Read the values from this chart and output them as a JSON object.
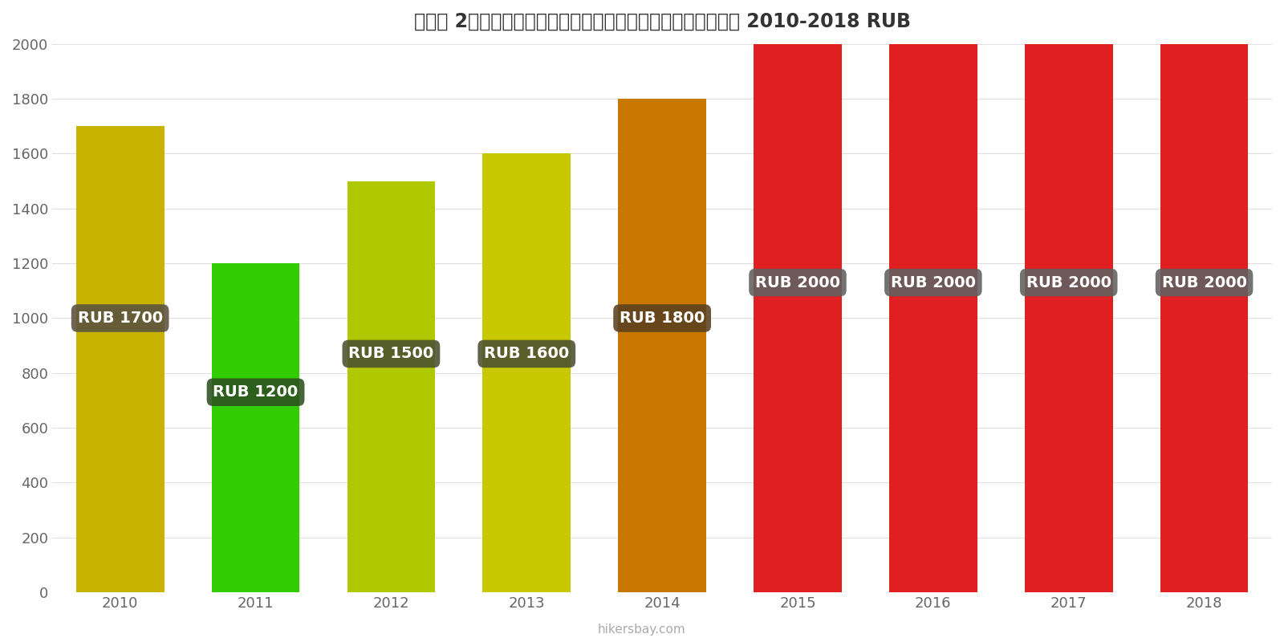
{
  "years": [
    2010,
    2011,
    2012,
    2013,
    2014,
    2015,
    2016,
    2017,
    2018
  ],
  "values": [
    1700,
    1200,
    1500,
    1600,
    1800,
    2000,
    2000,
    2000,
    2000
  ],
  "bar_colors": [
    "#c8b400",
    "#32cd00",
    "#b0c800",
    "#c8c800",
    "#c87800",
    "#e02020",
    "#e02020",
    "#e02020",
    "#e02020"
  ],
  "labels": [
    "RUB 1700",
    "RUB 1200",
    "RUB 1500",
    "RUB 1600",
    "RUB 1800",
    "RUB 2000",
    "RUB 2000",
    "RUB 2000",
    "RUB 2000"
  ],
  "label_bg_colors": [
    "#5a5040",
    "#2d5020",
    "#4a5030",
    "#4a5030",
    "#5a4020",
    "#606060",
    "#606060",
    "#606060",
    "#606060"
  ],
  "title": "ロシア 2名様分のお食事、ミッドレンジレストラン、３コース 2010-2018 RUB",
  "ylim": [
    0,
    2000
  ],
  "yticks": [
    0,
    200,
    400,
    600,
    800,
    1000,
    1200,
    1400,
    1600,
    1800,
    2000
  ],
  "footer": "hikersbay.com",
  "background_color": "#ffffff",
  "label_y_positions": [
    1000,
    730,
    870,
    870,
    1000,
    1130,
    1130,
    1130,
    1130
  ]
}
